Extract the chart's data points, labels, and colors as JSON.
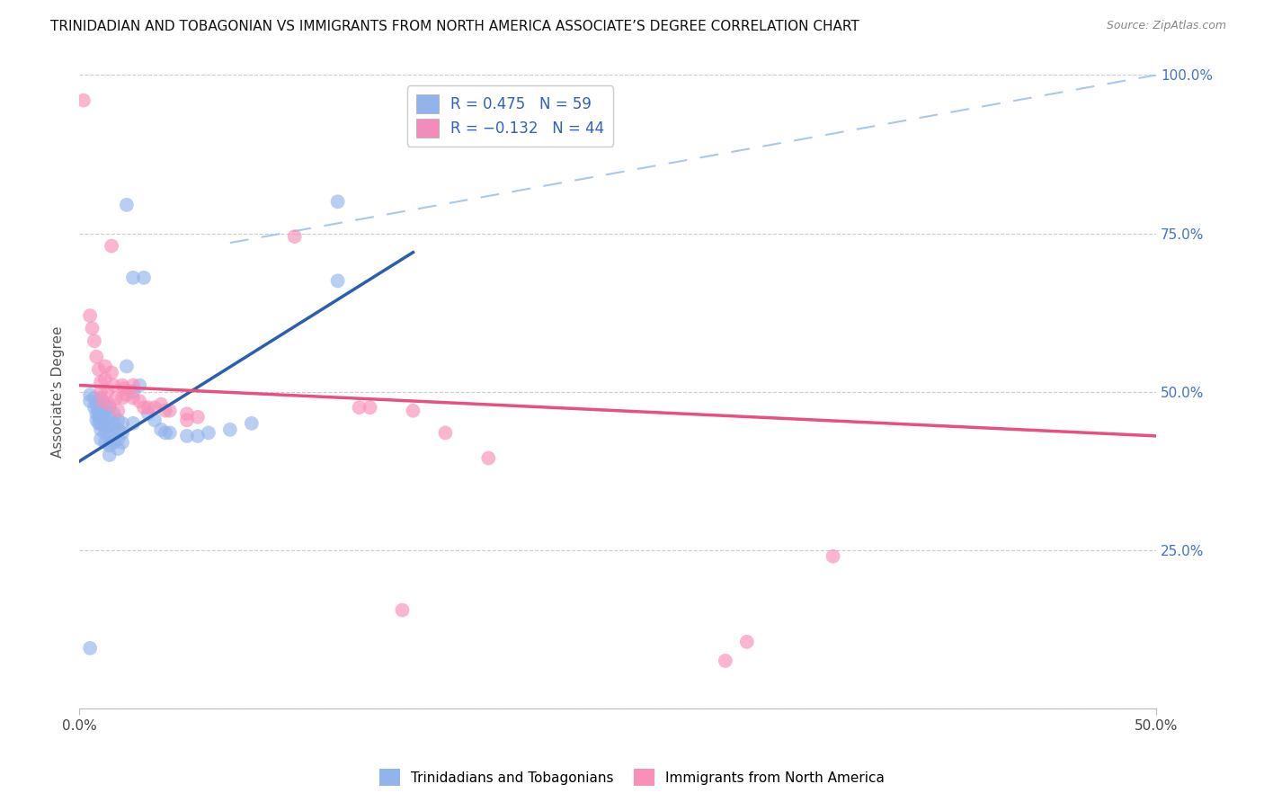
{
  "title": "TRINIDADIAN AND TOBAGONIAN VS IMMIGRANTS FROM NORTH AMERICA ASSOCIATE’S DEGREE CORRELATION CHART",
  "source": "Source: ZipAtlas.com",
  "ylabel": "Associate's Degree",
  "xlim": [
    0.0,
    0.5
  ],
  "ylim": [
    0.0,
    1.0
  ],
  "xticks": [
    0.0,
    0.5
  ],
  "xticklabels": [
    "0.0%",
    "50.0%"
  ],
  "yticks": [
    0.0,
    0.25,
    0.5,
    0.75,
    1.0
  ],
  "yticklabels": [
    "",
    "25.0%",
    "50.0%",
    "75.0%",
    "100.0%"
  ],
  "right_ytick_color": "#4472c4",
  "legend_entries": [
    {
      "label": "R = 0.475   N = 59",
      "color": "#92b4ec"
    },
    {
      "label": "R = −0.132   N = 44",
      "color": "#f48cba"
    }
  ],
  "blue_scatter": [
    [
      0.005,
      0.495
    ],
    [
      0.005,
      0.485
    ],
    [
      0.007,
      0.49
    ],
    [
      0.007,
      0.475
    ],
    [
      0.008,
      0.48
    ],
    [
      0.008,
      0.465
    ],
    [
      0.008,
      0.455
    ],
    [
      0.009,
      0.47
    ],
    [
      0.009,
      0.46
    ],
    [
      0.009,
      0.45
    ],
    [
      0.01,
      0.49
    ],
    [
      0.01,
      0.475
    ],
    [
      0.01,
      0.46
    ],
    [
      0.01,
      0.45
    ],
    [
      0.01,
      0.44
    ],
    [
      0.012,
      0.48
    ],
    [
      0.012,
      0.47
    ],
    [
      0.012,
      0.455
    ],
    [
      0.012,
      0.445
    ],
    [
      0.012,
      0.435
    ],
    [
      0.012,
      0.42
    ],
    [
      0.014,
      0.475
    ],
    [
      0.014,
      0.46
    ],
    [
      0.014,
      0.445
    ],
    [
      0.014,
      0.43
    ],
    [
      0.014,
      0.415
    ],
    [
      0.014,
      0.4
    ],
    [
      0.016,
      0.465
    ],
    [
      0.016,
      0.45
    ],
    [
      0.016,
      0.435
    ],
    [
      0.016,
      0.42
    ],
    [
      0.018,
      0.455
    ],
    [
      0.018,
      0.44
    ],
    [
      0.018,
      0.425
    ],
    [
      0.018,
      0.41
    ],
    [
      0.02,
      0.45
    ],
    [
      0.02,
      0.435
    ],
    [
      0.02,
      0.42
    ],
    [
      0.022,
      0.54
    ],
    [
      0.025,
      0.68
    ],
    [
      0.025,
      0.5
    ],
    [
      0.025,
      0.45
    ],
    [
      0.028,
      0.51
    ],
    [
      0.03,
      0.68
    ],
    [
      0.032,
      0.465
    ],
    [
      0.035,
      0.455
    ],
    [
      0.038,
      0.44
    ],
    [
      0.04,
      0.435
    ],
    [
      0.042,
      0.435
    ],
    [
      0.05,
      0.43
    ],
    [
      0.055,
      0.43
    ],
    [
      0.06,
      0.435
    ],
    [
      0.07,
      0.44
    ],
    [
      0.08,
      0.45
    ],
    [
      0.01,
      0.425
    ],
    [
      0.005,
      0.095
    ],
    [
      0.022,
      0.795
    ],
    [
      0.12,
      0.8
    ],
    [
      0.12,
      0.675
    ]
  ],
  "pink_scatter": [
    [
      0.005,
      0.62
    ],
    [
      0.006,
      0.6
    ],
    [
      0.007,
      0.58
    ],
    [
      0.008,
      0.555
    ],
    [
      0.009,
      0.535
    ],
    [
      0.01,
      0.515
    ],
    [
      0.01,
      0.5
    ],
    [
      0.011,
      0.485
    ],
    [
      0.012,
      0.54
    ],
    [
      0.012,
      0.52
    ],
    [
      0.013,
      0.5
    ],
    [
      0.014,
      0.48
    ],
    [
      0.015,
      0.53
    ],
    [
      0.016,
      0.51
    ],
    [
      0.017,
      0.49
    ],
    [
      0.018,
      0.47
    ],
    [
      0.02,
      0.51
    ],
    [
      0.02,
      0.49
    ],
    [
      0.021,
      0.505
    ],
    [
      0.022,
      0.495
    ],
    [
      0.025,
      0.51
    ],
    [
      0.025,
      0.49
    ],
    [
      0.028,
      0.485
    ],
    [
      0.03,
      0.475
    ],
    [
      0.032,
      0.475
    ],
    [
      0.035,
      0.475
    ],
    [
      0.038,
      0.48
    ],
    [
      0.04,
      0.47
    ],
    [
      0.042,
      0.47
    ],
    [
      0.05,
      0.465
    ],
    [
      0.05,
      0.455
    ],
    [
      0.055,
      0.46
    ],
    [
      0.13,
      0.475
    ],
    [
      0.135,
      0.475
    ],
    [
      0.155,
      0.47
    ],
    [
      0.17,
      0.435
    ],
    [
      0.19,
      0.395
    ],
    [
      0.002,
      0.96
    ],
    [
      0.015,
      0.73
    ],
    [
      0.1,
      0.745
    ],
    [
      0.15,
      0.155
    ],
    [
      0.31,
      0.105
    ],
    [
      0.3,
      0.075
    ],
    [
      0.35,
      0.24
    ]
  ],
  "blue_line": {
    "x": [
      0.0,
      0.155
    ],
    "y": [
      0.39,
      0.72
    ]
  },
  "pink_line": {
    "x": [
      0.0,
      0.5
    ],
    "y": [
      0.51,
      0.43
    ]
  },
  "dashed_line": {
    "x": [
      0.07,
      0.5
    ],
    "y": [
      0.735,
      1.0
    ]
  },
  "blue_color": "#92b4ec",
  "pink_color": "#f890b8",
  "blue_line_color": "#2b5fac",
  "pink_line_color": "#e85080",
  "dashed_line_color": "#a8c8f0",
  "background_color": "#ffffff",
  "grid_color": "#cccccc",
  "title_fontsize": 11,
  "label_fontsize": 11,
  "tick_fontsize": 11,
  "source_fontsize": 9,
  "scatter_size": 130
}
